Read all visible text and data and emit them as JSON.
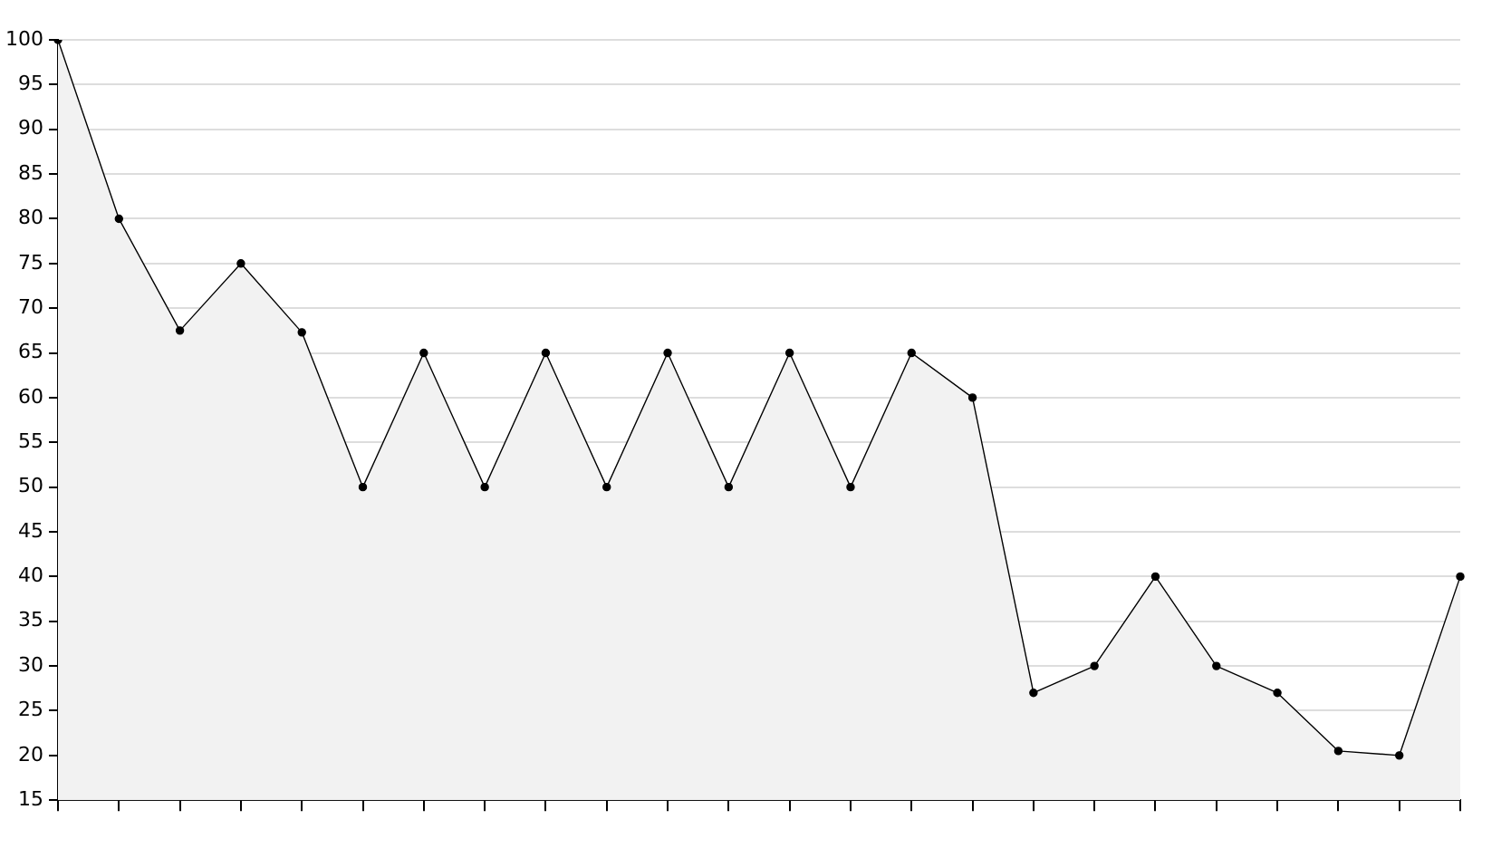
{
  "chart_data": {
    "type": "area",
    "categories": [
      null,
      null,
      null,
      null,
      null,
      null,
      null,
      null,
      null,
      null,
      null,
      null,
      null,
      null,
      null,
      null,
      null,
      null,
      null,
      null,
      null,
      null,
      null,
      null
    ],
    "series": [
      {
        "color": "#000000",
        "values": [
          100,
          80,
          67.5,
          75,
          67.3,
          50,
          65,
          50,
          65,
          50,
          65,
          50,
          65,
          50,
          65,
          60,
          27,
          30,
          40,
          30,
          27,
          20.5,
          20,
          40
        ]
      }
    ],
    "ylim": [
      15,
      100
    ],
    "yticks": [
      15,
      20,
      25,
      30,
      35,
      40,
      45,
      50,
      55,
      60,
      65,
      70,
      75,
      80,
      85,
      90,
      95,
      100
    ],
    "grid": "y",
    "legend": false,
    "marker": "circle",
    "line_style": "solid"
  }
}
